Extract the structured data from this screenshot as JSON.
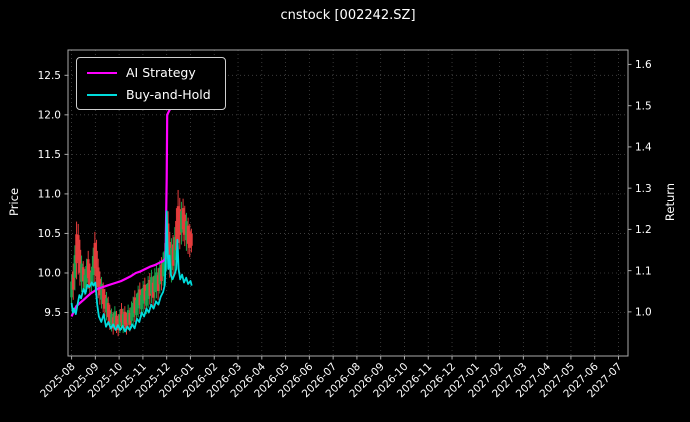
{
  "chart_data": {
    "type": "line",
    "overlays": [
      "candlestick"
    ],
    "title": "cnstock [002242.SZ]",
    "xlabel": "",
    "ylabel_left": "Price",
    "ylabel_right": "Return",
    "x_tick_labels": [
      "2025-08",
      "2025-09",
      "2025-10",
      "2025-11",
      "2025-12",
      "2026-01",
      "2026-02",
      "2026-03",
      "2026-04",
      "2026-05",
      "2026-06",
      "2026-07",
      "2026-08",
      "2026-09",
      "2026-10",
      "2026-11",
      "2026-12",
      "2027-01",
      "2027-02",
      "2027-03",
      "2027-04",
      "2027-05",
      "2027-06",
      "2027-07"
    ],
    "y_ticks_left": [
      9.5,
      10.0,
      10.5,
      11.0,
      11.5,
      12.0,
      12.5
    ],
    "y_ticks_right": [
      1.0,
      1.1,
      1.2,
      1.3,
      1.4,
      1.5,
      1.6
    ],
    "layout": {
      "x_min": -0.15,
      "x_max": 23.4,
      "ylim_left": [
        8.95,
        12.82
      ],
      "ylim_right": [
        0.893,
        1.635
      ],
      "grid": "dotted",
      "legend_position": "upper-left",
      "background": "#000000",
      "text_color": "#ffffff",
      "spine_color": "#aaaaaa",
      "grid_color": "rgba(200,200,200,0.35)",
      "x_unit": "months since 2025-08"
    },
    "series": [
      {
        "name": "AI Strategy",
        "color": "#ff00ff",
        "axis": "left",
        "points": [
          [
            0,
            9.45
          ],
          [
            0.1,
            9.52
          ],
          [
            0.2,
            9.58
          ],
          [
            0.35,
            9.62
          ],
          [
            0.5,
            9.66
          ],
          [
            0.65,
            9.7
          ],
          [
            0.8,
            9.74
          ],
          [
            0.95,
            9.77
          ],
          [
            1.1,
            9.8
          ],
          [
            1.3,
            9.82
          ],
          [
            1.5,
            9.84
          ],
          [
            1.7,
            9.86
          ],
          [
            1.9,
            9.88
          ],
          [
            2.1,
            9.9
          ],
          [
            2.3,
            9.93
          ],
          [
            2.5,
            9.96
          ],
          [
            2.7,
            10.0
          ],
          [
            2.9,
            10.02
          ],
          [
            3.1,
            10.05
          ],
          [
            3.3,
            10.08
          ],
          [
            3.5,
            10.1
          ],
          [
            3.7,
            10.13
          ],
          [
            3.85,
            10.15
          ],
          [
            3.95,
            10.18
          ],
          [
            4.0,
            11.2
          ],
          [
            4.02,
            12.0
          ],
          [
            4.1,
            12.05
          ],
          [
            4.2,
            12.1
          ],
          [
            4.3,
            12.18
          ],
          [
            4.4,
            12.22
          ],
          [
            4.5,
            12.3
          ],
          [
            4.6,
            12.45
          ],
          [
            4.68,
            12.58
          ],
          [
            4.72,
            12.5
          ],
          [
            4.78,
            12.35
          ],
          [
            4.85,
            12.28
          ],
          [
            4.95,
            12.22
          ],
          [
            5.05,
            12.2
          ]
        ]
      },
      {
        "name": "Buy-and-Hold",
        "color": "#00dcdc",
        "axis": "left",
        "points": [
          [
            0,
            9.62
          ],
          [
            0.05,
            9.5
          ],
          [
            0.1,
            9.55
          ],
          [
            0.18,
            9.48
          ],
          [
            0.25,
            9.6
          ],
          [
            0.33,
            9.72
          ],
          [
            0.4,
            9.68
          ],
          [
            0.5,
            9.8
          ],
          [
            0.58,
            9.74
          ],
          [
            0.66,
            9.85
          ],
          [
            0.75,
            9.82
          ],
          [
            0.85,
            9.88
          ],
          [
            0.92,
            9.84
          ],
          [
            1.0,
            9.88
          ],
          [
            1.08,
            9.6
          ],
          [
            1.15,
            9.45
          ],
          [
            1.25,
            9.38
          ],
          [
            1.35,
            9.48
          ],
          [
            1.45,
            9.32
          ],
          [
            1.55,
            9.38
          ],
          [
            1.65,
            9.3
          ],
          [
            1.75,
            9.35
          ],
          [
            1.85,
            9.28
          ],
          [
            1.95,
            9.34
          ],
          [
            2.05,
            9.28
          ],
          [
            2.15,
            9.33
          ],
          [
            2.25,
            9.26
          ],
          [
            2.35,
            9.32
          ],
          [
            2.45,
            9.28
          ],
          [
            2.55,
            9.35
          ],
          [
            2.65,
            9.3
          ],
          [
            2.75,
            9.42
          ],
          [
            2.85,
            9.38
          ],
          [
            2.95,
            9.5
          ],
          [
            3.05,
            9.45
          ],
          [
            3.15,
            9.55
          ],
          [
            3.25,
            9.5
          ],
          [
            3.35,
            9.6
          ],
          [
            3.45,
            9.55
          ],
          [
            3.55,
            9.64
          ],
          [
            3.65,
            9.6
          ],
          [
            3.75,
            9.7
          ],
          [
            3.85,
            9.76
          ],
          [
            3.92,
            9.85
          ],
          [
            3.97,
            10.3
          ],
          [
            4.0,
            10.78
          ],
          [
            4.03,
            10.4
          ],
          [
            4.07,
            10.05
          ],
          [
            4.12,
            10.22
          ],
          [
            4.17,
            9.98
          ],
          [
            4.25,
            9.92
          ],
          [
            4.33,
            9.98
          ],
          [
            4.4,
            10.05
          ],
          [
            4.45,
            10.42
          ],
          [
            4.5,
            10.05
          ],
          [
            4.57,
            9.92
          ],
          [
            4.65,
            9.98
          ],
          [
            4.73,
            9.88
          ],
          [
            4.82,
            9.94
          ],
          [
            4.9,
            9.86
          ],
          [
            5.0,
            9.9
          ],
          [
            5.05,
            9.84
          ]
        ]
      }
    ],
    "candles": {
      "up_color": "#17a54d",
      "down_color": "#e43c3c",
      "bars": [
        [
          0.0,
          9.58,
          9.98,
          "g"
        ],
        [
          0.07,
          9.66,
          10.12,
          "r"
        ],
        [
          0.14,
          9.78,
          10.35,
          "g"
        ],
        [
          0.21,
          9.92,
          10.65,
          "r"
        ],
        [
          0.28,
          9.98,
          10.62,
          "r"
        ],
        [
          0.35,
          9.84,
          10.42,
          "r"
        ],
        [
          0.42,
          9.76,
          10.22,
          "g"
        ],
        [
          0.49,
          9.8,
          10.15,
          "r"
        ],
        [
          0.56,
          9.72,
          10.05,
          "g"
        ],
        [
          0.63,
          9.76,
          10.18,
          "g"
        ],
        [
          0.7,
          9.8,
          10.28,
          "r"
        ],
        [
          0.77,
          9.72,
          10.12,
          "r"
        ],
        [
          0.84,
          9.76,
          10.08,
          "g"
        ],
        [
          0.91,
          9.84,
          10.32,
          "g"
        ],
        [
          0.98,
          9.88,
          10.52,
          "r"
        ],
        [
          1.05,
          9.78,
          10.42,
          "r"
        ],
        [
          1.12,
          9.68,
          10.18,
          "r"
        ],
        [
          1.19,
          9.6,
          10.02,
          "r"
        ],
        [
          1.26,
          9.55,
          9.95,
          "g"
        ],
        [
          1.33,
          9.5,
          9.88,
          "r"
        ],
        [
          1.4,
          9.45,
          9.8,
          "r"
        ],
        [
          1.47,
          9.4,
          9.76,
          "g"
        ],
        [
          1.54,
          9.34,
          9.7,
          "r"
        ],
        [
          1.61,
          9.28,
          9.6,
          "r"
        ],
        [
          1.68,
          9.26,
          9.55,
          "g"
        ],
        [
          1.75,
          9.22,
          9.5,
          "r"
        ],
        [
          1.82,
          9.28,
          9.58,
          "g"
        ],
        [
          1.89,
          9.24,
          9.52,
          "r"
        ],
        [
          1.96,
          9.2,
          9.48,
          "r"
        ],
        [
          2.03,
          9.24,
          9.54,
          "g"
        ],
        [
          2.1,
          9.28,
          9.62,
          "r"
        ],
        [
          2.17,
          9.24,
          9.55,
          "g"
        ],
        [
          2.24,
          9.26,
          9.58,
          "r"
        ],
        [
          2.31,
          9.22,
          9.5,
          "r"
        ],
        [
          2.38,
          9.28,
          9.6,
          "g"
        ],
        [
          2.45,
          9.26,
          9.56,
          "r"
        ],
        [
          2.52,
          9.3,
          9.64,
          "g"
        ],
        [
          2.59,
          9.34,
          9.7,
          "g"
        ],
        [
          2.66,
          9.38,
          9.78,
          "r"
        ],
        [
          2.73,
          9.36,
          9.74,
          "g"
        ],
        [
          2.8,
          9.44,
          9.84,
          "g"
        ],
        [
          2.87,
          9.48,
          9.88,
          "r"
        ],
        [
          2.94,
          9.44,
          9.8,
          "g"
        ],
        [
          3.01,
          9.5,
          9.9,
          "g"
        ],
        [
          3.08,
          9.54,
          9.94,
          "r"
        ],
        [
          3.15,
          9.48,
          9.86,
          "g"
        ],
        [
          3.22,
          9.56,
          9.96,
          "g"
        ],
        [
          3.29,
          9.6,
          10.0,
          "r"
        ],
        [
          3.36,
          9.62,
          10.04,
          "g"
        ],
        [
          3.43,
          9.58,
          9.96,
          "r"
        ],
        [
          3.5,
          9.64,
          10.06,
          "g"
        ],
        [
          3.57,
          9.68,
          10.1,
          "g"
        ],
        [
          3.64,
          9.66,
          10.06,
          "r"
        ],
        [
          3.71,
          9.74,
          10.16,
          "g"
        ],
        [
          3.78,
          9.78,
          10.2,
          "r"
        ],
        [
          3.85,
          9.84,
          10.26,
          "g"
        ],
        [
          3.92,
          9.9,
          10.38,
          "g"
        ],
        [
          3.99,
          10.02,
          10.68,
          "g"
        ],
        [
          4.06,
          10.08,
          10.78,
          "r"
        ],
        [
          4.13,
          9.94,
          10.52,
          "r"
        ],
        [
          4.2,
          9.88,
          10.44,
          "g"
        ],
        [
          4.27,
          9.94,
          10.48,
          "r"
        ],
        [
          4.34,
          10.0,
          10.58,
          "g"
        ],
        [
          4.41,
          10.08,
          10.82,
          "r"
        ],
        [
          4.48,
          10.12,
          11.05,
          "r"
        ],
        [
          4.55,
          10.3,
          10.95,
          "r"
        ],
        [
          4.62,
          10.36,
          10.9,
          "g"
        ],
        [
          4.69,
          10.4,
          10.94,
          "r"
        ],
        [
          4.76,
          10.34,
          10.85,
          "r"
        ],
        [
          4.83,
          10.28,
          10.76,
          "g"
        ],
        [
          4.9,
          10.24,
          10.7,
          "r"
        ],
        [
          4.97,
          10.2,
          10.62,
          "r"
        ],
        [
          5.04,
          10.26,
          10.56,
          "r"
        ]
      ]
    }
  }
}
